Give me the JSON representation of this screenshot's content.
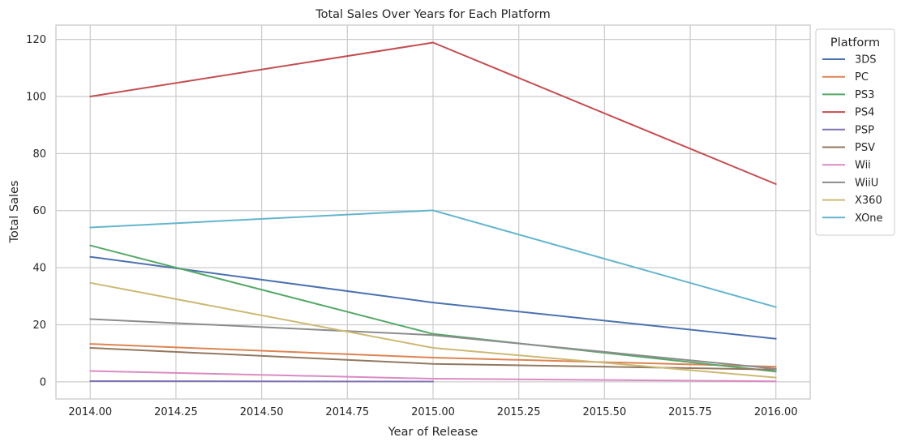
{
  "chart_data": {
    "type": "line",
    "title": "Total Sales Over Years for Each Platform",
    "xlabel": "Year of Release",
    "ylabel": "Total Sales",
    "x": [
      2014,
      2015,
      2016
    ],
    "xlim": [
      2013.9,
      2016.1
    ],
    "ylim": [
      -6,
      125
    ],
    "xticks": [
      2014.0,
      2014.25,
      2014.5,
      2014.75,
      2015.0,
      2015.25,
      2015.5,
      2015.75,
      2016.0
    ],
    "xtick_labels": [
      "2014.00",
      "2014.25",
      "2014.50",
      "2014.75",
      "2015.00",
      "2015.25",
      "2015.50",
      "2015.75",
      "2016.00"
    ],
    "yticks": [
      0,
      20,
      40,
      60,
      80,
      100,
      120
    ],
    "ytick_labels": [
      "0",
      "20",
      "40",
      "60",
      "80",
      "100",
      "120"
    ],
    "grid": true,
    "legend": {
      "title": "Platform",
      "placement": "outside-top-right"
    },
    "series": [
      {
        "name": "3DS",
        "color": "#4c72b0",
        "values": [
          43.8,
          27.8,
          15.1
        ]
      },
      {
        "name": "PC",
        "color": "#dd8452",
        "values": [
          13.3,
          8.5,
          5.3
        ]
      },
      {
        "name": "PS3",
        "color": "#55a868",
        "values": [
          47.8,
          16.8,
          3.6
        ]
      },
      {
        "name": "PS4",
        "color": "#c44e52",
        "values": [
          100.0,
          118.9,
          69.3
        ]
      },
      {
        "name": "PSP",
        "color": "#8172b3",
        "values": [
          0.24,
          0.12,
          null
        ]
      },
      {
        "name": "PSV",
        "color": "#937860",
        "values": [
          11.9,
          6.3,
          4.3
        ]
      },
      {
        "name": "Wii",
        "color": "#da8bc3",
        "values": [
          3.8,
          1.1,
          0.2
        ]
      },
      {
        "name": "WiiU",
        "color": "#8c8c8c",
        "values": [
          22.0,
          16.4,
          4.6
        ]
      },
      {
        "name": "X360",
        "color": "#ccb974",
        "values": [
          34.7,
          11.9,
          1.5
        ]
      },
      {
        "name": "XOne",
        "color": "#64b5cd",
        "values": [
          54.1,
          60.1,
          26.2
        ]
      }
    ]
  }
}
